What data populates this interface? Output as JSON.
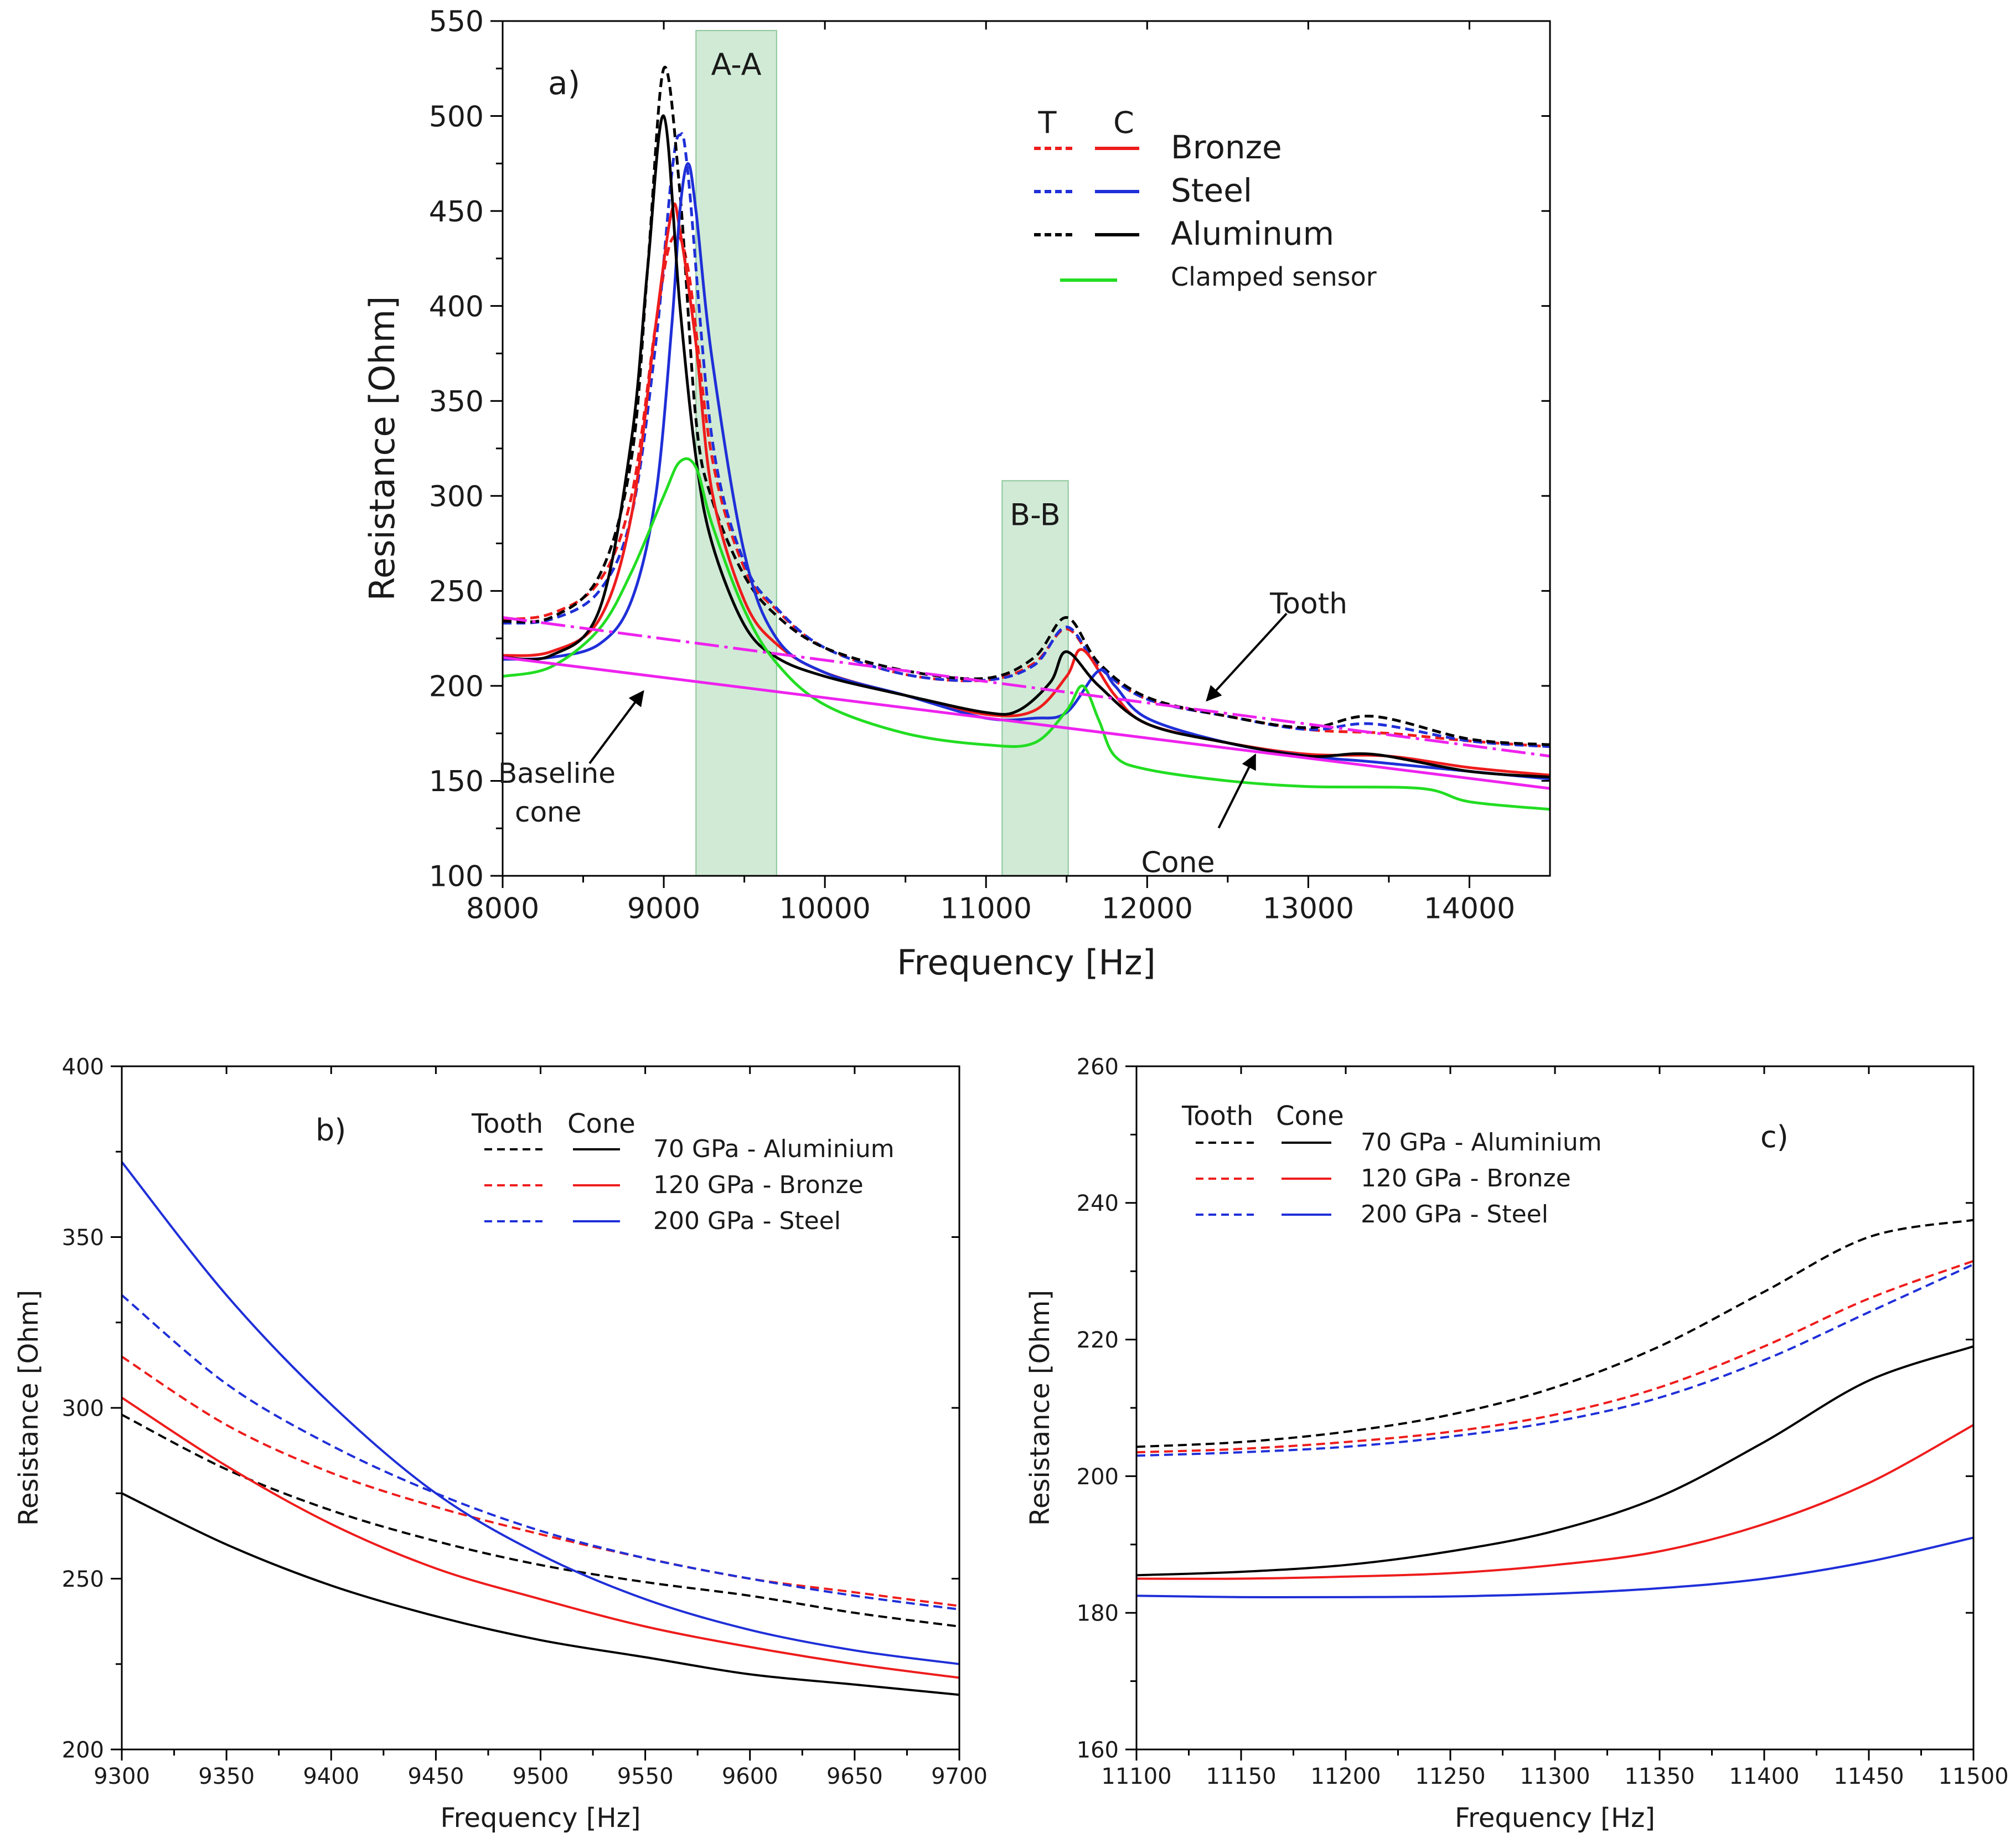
{
  "chart_data": [
    {
      "id": "a",
      "type": "line",
      "panel_label": "a)",
      "xlabel": "Frequency [Hz]",
      "ylabel": "Resistance [Ohm]",
      "xlim": [
        8000,
        14500
      ],
      "ylim": [
        100,
        550
      ],
      "xticks": [
        8000,
        9000,
        10000,
        11000,
        12000,
        13000,
        14000
      ],
      "yticks": [
        100,
        150,
        200,
        250,
        300,
        350,
        400,
        450,
        500,
        550
      ],
      "bands": [
        {
          "label": "A-A",
          "x": [
            9200,
            9700
          ],
          "ytop": 545
        },
        {
          "label": "B-B",
          "x": [
            11100,
            11510
          ],
          "ytop": 308
        }
      ],
      "legend": {
        "header": [
          "T",
          "C"
        ],
        "entries": [
          {
            "label": "Bronze",
            "color": "#ee1c1c"
          },
          {
            "label": "Steel",
            "color": "#1f2fd8"
          },
          {
            "label": "Aluminum",
            "color": "#000000"
          },
          {
            "label": "Clamped sensor",
            "color": "#22dd22"
          }
        ]
      },
      "annotations": [
        {
          "text": "Tooth",
          "point": [
            12350,
            190
          ]
        },
        {
          "text": "Baseline cone",
          "lines": [
            "Baseline",
            "cone"
          ],
          "point": [
            8900,
            200
          ]
        },
        {
          "text": "Cone",
          "point": [
            12650,
            166
          ]
        }
      ],
      "series": [
        {
          "name": "Bronze tooth",
          "color": "#ee1c1c",
          "dash": true,
          "x": [
            8000,
            8300,
            8600,
            8800,
            8950,
            9050,
            9150,
            9300,
            9500,
            9700,
            10000,
            10500,
            11000,
            11300,
            11500,
            11700,
            12000,
            12500,
            13000,
            13500,
            14000,
            14500
          ],
          "y": [
            235,
            238,
            255,
            300,
            390,
            435,
            420,
            320,
            262,
            240,
            220,
            206,
            203,
            212,
            230,
            210,
            193,
            184,
            177,
            175,
            171,
            168
          ]
        },
        {
          "name": "Steel tooth",
          "color": "#1f2fd8",
          "dash": true,
          "x": [
            8000,
            8300,
            8600,
            8800,
            8950,
            9050,
            9100,
            9150,
            9300,
            9500,
            9700,
            10000,
            10500,
            11000,
            11300,
            11500,
            11700,
            12000,
            12500,
            13000,
            13400,
            14000,
            14500
          ],
          "y": [
            233,
            235,
            250,
            290,
            380,
            470,
            490,
            470,
            330,
            265,
            241,
            220,
            206,
            203,
            211,
            231,
            210,
            193,
            184,
            177,
            180,
            171,
            168
          ]
        },
        {
          "name": "Aluminum tooth",
          "color": "#000000",
          "dash": true,
          "x": [
            8000,
            8300,
            8600,
            8800,
            8900,
            9000,
            9100,
            9200,
            9300,
            9500,
            9700,
            10000,
            10500,
            11000,
            11300,
            11500,
            11700,
            12000,
            12500,
            13000,
            13400,
            14000,
            14500
          ],
          "y": [
            234,
            236,
            258,
            320,
            420,
            525,
            460,
            340,
            298,
            258,
            237,
            220,
            208,
            204,
            215,
            236,
            212,
            194,
            184,
            178,
            184,
            172,
            169
          ]
        },
        {
          "name": "Bronze cone",
          "color": "#ee1c1c",
          "dash": false,
          "x": [
            8000,
            8300,
            8600,
            8800,
            8950,
            9050,
            9100,
            9200,
            9300,
            9500,
            9700,
            10000,
            10500,
            11000,
            11300,
            11500,
            11600,
            11800,
            12000,
            12500,
            13000,
            13500,
            14000,
            14500
          ],
          "y": [
            216,
            218,
            235,
            290,
            390,
            450,
            440,
            380,
            302,
            245,
            222,
            207,
            195,
            185,
            187,
            205,
            219,
            195,
            180,
            170,
            164,
            163,
            157,
            153
          ]
        },
        {
          "name": "Steel cone",
          "color": "#1f2fd8",
          "dash": false,
          "x": [
            8000,
            8300,
            8600,
            8800,
            8950,
            9050,
            9100,
            9150,
            9200,
            9300,
            9500,
            9700,
            10000,
            10500,
            11000,
            11300,
            11500,
            11700,
            11800,
            12000,
            12500,
            13000,
            13400,
            14000,
            14500
          ],
          "y": [
            214,
            215,
            222,
            245,
            300,
            390,
            450,
            475,
            450,
            372,
            270,
            225,
            207,
            195,
            183,
            183,
            186,
            208,
            200,
            183,
            170,
            163,
            160,
            155,
            151
          ]
        },
        {
          "name": "Aluminum cone",
          "color": "#000000",
          "dash": false,
          "x": [
            8000,
            8300,
            8600,
            8800,
            8900,
            9000,
            9100,
            9200,
            9300,
            9500,
            9700,
            10000,
            10500,
            11000,
            11200,
            11400,
            11500,
            11700,
            12000,
            12500,
            13000,
            13400,
            14000,
            14500
          ],
          "y": [
            215,
            216,
            240,
            330,
            420,
            500,
            400,
            320,
            275,
            232,
            215,
            205,
            195,
            186,
            187,
            202,
            218,
            200,
            180,
            170,
            163,
            164,
            155,
            152
          ]
        },
        {
          "name": "Clamped sensor",
          "color": "#22dd22",
          "dash": false,
          "x": [
            8000,
            8300,
            8600,
            8800,
            9000,
            9100,
            9200,
            9300,
            9500,
            9700,
            10000,
            10500,
            11000,
            11300,
            11500,
            11600,
            11700,
            11800,
            12000,
            12500,
            13000,
            13700,
            14000,
            14500
          ],
          "y": [
            205,
            210,
            230,
            260,
            300,
            318,
            315,
            285,
            240,
            212,
            190,
            175,
            169,
            170,
            187,
            200,
            182,
            163,
            156,
            150,
            147,
            146,
            139,
            135
          ]
        },
        {
          "name": "Baseline tooth",
          "color": "#ee22ee",
          "dash": true,
          "x": [
            8000,
            14500
          ],
          "y": [
            236,
            163
          ]
        },
        {
          "name": "Baseline cone",
          "color": "#ee22ee",
          "dash": false,
          "x": [
            8000,
            14500
          ],
          "y": [
            215,
            146
          ]
        }
      ]
    },
    {
      "id": "b",
      "type": "line",
      "panel_label": "b)",
      "xlabel": "Frequency [Hz]",
      "ylabel": "Resistance [Ohm]",
      "xlim": [
        9300,
        9700
      ],
      "ylim": [
        200,
        400
      ],
      "xticks": [
        9300,
        9350,
        9400,
        9450,
        9500,
        9550,
        9600,
        9650,
        9700
      ],
      "yticks": [
        200,
        250,
        300,
        350,
        400
      ],
      "legend": {
        "header": [
          "Tooth",
          "Cone"
        ],
        "entries": [
          {
            "label": "70 GPa - Aluminium",
            "color": "#000000"
          },
          {
            "label": "120 GPa - Bronze",
            "color": "#ee1c1c"
          },
          {
            "label": "200 GPa - Steel",
            "color": "#1f2fd8"
          }
        ]
      },
      "series": [
        {
          "name": "Aluminium tooth",
          "color": "#000000",
          "dash": true,
          "x": [
            9300,
            9350,
            9400,
            9450,
            9500,
            9550,
            9600,
            9650,
            9700
          ],
          "y": [
            298,
            282,
            270,
            261,
            254,
            249,
            245,
            240,
            236
          ]
        },
        {
          "name": "Bronze tooth",
          "color": "#ee1c1c",
          "dash": true,
          "x": [
            9300,
            9350,
            9400,
            9450,
            9500,
            9550,
            9600,
            9650,
            9700
          ],
          "y": [
            315,
            295,
            281,
            271,
            263,
            256,
            250,
            246,
            242
          ]
        },
        {
          "name": "Steel tooth",
          "color": "#1f2fd8",
          "dash": true,
          "x": [
            9300,
            9350,
            9400,
            9450,
            9500,
            9550,
            9600,
            9650,
            9700
          ],
          "y": [
            333,
            307,
            289,
            275,
            264,
            256,
            250,
            245,
            241
          ]
        },
        {
          "name": "Aluminium cone",
          "color": "#000000",
          "dash": false,
          "x": [
            9300,
            9350,
            9400,
            9450,
            9500,
            9550,
            9600,
            9650,
            9700
          ],
          "y": [
            275,
            260,
            248,
            239,
            232,
            227,
            222,
            219,
            216
          ]
        },
        {
          "name": "Bronze cone",
          "color": "#ee1c1c",
          "dash": false,
          "x": [
            9300,
            9350,
            9400,
            9450,
            9500,
            9550,
            9600,
            9650,
            9700
          ],
          "y": [
            303,
            283,
            266,
            253,
            244,
            236,
            230,
            225,
            221
          ]
        },
        {
          "name": "Steel cone",
          "color": "#1f2fd8",
          "dash": false,
          "x": [
            9300,
            9350,
            9400,
            9450,
            9500,
            9550,
            9600,
            9650,
            9700
          ],
          "y": [
            372,
            333,
            301,
            275,
            257,
            244,
            235,
            229,
            225
          ]
        }
      ]
    },
    {
      "id": "c",
      "type": "line",
      "panel_label": "c)",
      "xlabel": "Frequency [Hz]",
      "ylabel": "Resistance [Ohm]",
      "xlim": [
        11100,
        11500
      ],
      "ylim": [
        160,
        260
      ],
      "xticks": [
        11100,
        11150,
        11200,
        11250,
        11300,
        11350,
        11400,
        11450,
        11500
      ],
      "yticks": [
        160,
        180,
        200,
        220,
        240,
        260
      ],
      "legend": {
        "header": [
          "Tooth",
          "Cone"
        ],
        "entries": [
          {
            "label": "70 GPa - Aluminium",
            "color": "#000000"
          },
          {
            "label": "120 GPa - Bronze",
            "color": "#ee1c1c"
          },
          {
            "label": "200 GPa - Steel",
            "color": "#1f2fd8"
          }
        ]
      },
      "series": [
        {
          "name": "Aluminium tooth",
          "color": "#000000",
          "dash": true,
          "x": [
            11100,
            11150,
            11200,
            11250,
            11300,
            11350,
            11400,
            11450,
            11500
          ],
          "y": [
            204.3,
            205,
            206.5,
            209,
            213,
            219,
            227,
            235,
            237.5
          ]
        },
        {
          "name": "Bronze tooth",
          "color": "#ee1c1c",
          "dash": true,
          "x": [
            11100,
            11150,
            11200,
            11250,
            11300,
            11350,
            11400,
            11450,
            11500
          ],
          "y": [
            203.5,
            204,
            205,
            206.5,
            209,
            213,
            219,
            226,
            231.5
          ]
        },
        {
          "name": "Steel tooth",
          "color": "#1f2fd8",
          "dash": true,
          "x": [
            11100,
            11150,
            11200,
            11250,
            11300,
            11350,
            11400,
            11450,
            11500
          ],
          "y": [
            203,
            203.5,
            204.3,
            205.8,
            208,
            211.5,
            217,
            224,
            231
          ]
        },
        {
          "name": "Aluminium cone",
          "color": "#000000",
          "dash": false,
          "x": [
            11100,
            11150,
            11200,
            11250,
            11300,
            11350,
            11400,
            11450,
            11500
          ],
          "y": [
            185.5,
            186,
            187,
            189,
            192,
            197,
            205,
            214,
            219
          ]
        },
        {
          "name": "Bronze cone",
          "color": "#ee1c1c",
          "dash": false,
          "x": [
            11100,
            11150,
            11200,
            11250,
            11300,
            11350,
            11400,
            11450,
            11500
          ],
          "y": [
            185,
            185,
            185.3,
            185.8,
            187,
            189,
            193,
            199,
            207.5
          ]
        },
        {
          "name": "Steel cone",
          "color": "#1f2fd8",
          "dash": false,
          "x": [
            11100,
            11150,
            11200,
            11250,
            11300,
            11350,
            11400,
            11450,
            11500
          ],
          "y": [
            182.5,
            182.3,
            182.3,
            182.4,
            182.8,
            183.6,
            185,
            187.5,
            191
          ]
        }
      ]
    }
  ]
}
